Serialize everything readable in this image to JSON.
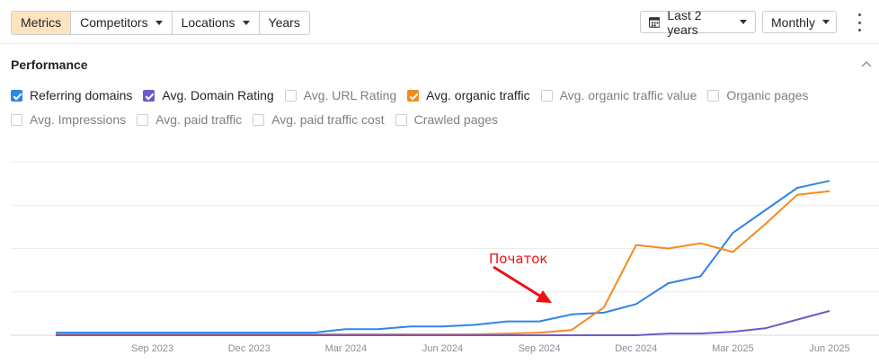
{
  "toolbar": {
    "tabs": [
      "Metrics",
      "Competitors",
      "Locations",
      "Years"
    ],
    "date_range": "Last 2 years",
    "interval": "Monthly"
  },
  "performance": {
    "title": "Performance",
    "metrics": [
      {
        "label": "Referring domains",
        "checked": true,
        "color": "#2f85e4"
      },
      {
        "label": "Avg. Domain Rating",
        "checked": true,
        "color": "#6f59c9"
      },
      {
        "label": "Avg. URL Rating",
        "checked": false
      },
      {
        "label": "Avg. organic traffic",
        "checked": true,
        "color": "#f5891f"
      },
      {
        "label": "Avg. organic traffic value",
        "checked": false
      },
      {
        "label": "Organic pages",
        "checked": false
      },
      {
        "label": "Avg. Impressions",
        "checked": false
      },
      {
        "label": "Avg. paid traffic",
        "checked": false
      },
      {
        "label": "Avg. paid traffic cost",
        "checked": false
      },
      {
        "label": "Crawled pages",
        "checked": false
      }
    ]
  },
  "chart_data": {
    "type": "line",
    "x": [
      "Jun 2023",
      "Jul 2023",
      "Aug 2023",
      "Sep 2023",
      "Oct 2023",
      "Nov 2023",
      "Dec 2023",
      "Jan 2024",
      "Feb 2024",
      "Mar 2024",
      "Apr 2024",
      "May 2024",
      "Jun 2024",
      "Jul 2024",
      "Aug 2024",
      "Sep 2024",
      "Oct 2024",
      "Nov 2024",
      "Dec 2024",
      "Jan 2025",
      "Feb 2025",
      "Mar 2025",
      "Apr 2025",
      "May 2025",
      "Jun 2025"
    ],
    "x_tick_labels": [
      "Sep 2023",
      "Dec 2023",
      "Mar 2024",
      "Jun 2024",
      "Sep 2024",
      "Dec 2024",
      "Mar 2025",
      "Jun 2025"
    ],
    "ylim": [
      0,
      100
    ],
    "grid": true,
    "series": [
      {
        "name": "Referring domains",
        "color": "#2f85e4",
        "values": [
          1.5,
          1.5,
          1.5,
          1.5,
          1.5,
          1.5,
          1.5,
          1.5,
          1.5,
          3.5,
          3.5,
          5,
          5,
          6,
          8,
          8,
          12,
          13,
          18,
          30,
          34,
          59,
          72,
          85,
          89
        ]
      },
      {
        "name": "Avg. organic traffic",
        "color": "#f5891f",
        "values": [
          0.5,
          0.5,
          0.5,
          0.5,
          0.5,
          0.5,
          0.5,
          0.5,
          0.5,
          0.5,
          0.5,
          0.5,
          0.5,
          0.5,
          1,
          1.5,
          3,
          16,
          52,
          50,
          53,
          48,
          64,
          81,
          83
        ]
      },
      {
        "name": "Avg. Domain Rating",
        "color": "#6f59c9",
        "values": [
          0,
          0,
          0,
          0,
          0,
          0,
          0,
          0,
          0,
          0,
          0,
          0,
          0,
          0,
          0,
          0,
          0,
          0,
          0,
          1,
          1,
          2,
          4,
          9,
          14
        ]
      }
    ],
    "annotation": {
      "text": "Початок",
      "color": "#ee1111"
    }
  },
  "icons": {
    "calendar": "calendar-icon",
    "more": "more-vertical-icon",
    "collapse": "chevron-up-icon"
  }
}
